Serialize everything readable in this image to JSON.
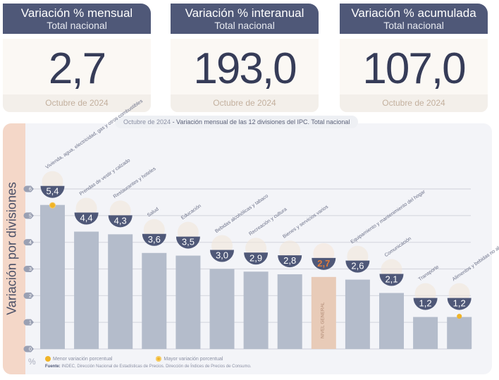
{
  "cards": [
    {
      "title": "Variación % mensual",
      "subtitle": "Total nacional",
      "value": "2,7",
      "period": "Octubre de 2024"
    },
    {
      "title": "Variación % interanual",
      "subtitle": "Total nacional",
      "value": "193,0",
      "period": "Octubre de 2024"
    },
    {
      "title": "Variación % acumulada",
      "subtitle": "Total nacional",
      "value": "107,0",
      "period": "Octubre de 2024"
    }
  ],
  "chart_data": {
    "type": "bar",
    "title_period": "Octubre de 2024",
    "title": " - Variación mensual de las 12 divisiones del IPC. Total nacional",
    "ylabel": "Variación por divisiones",
    "yunit": "%",
    "ylim": [
      0,
      6
    ],
    "yticks": [
      "0",
      "1",
      "2",
      "3",
      "4",
      "5",
      "6"
    ],
    "grid": true,
    "categories": [
      "Vivienda, agua, electricidad, gas y otros combustibles",
      "Prendas de vestir y calzado",
      "Restaurantes y hoteles",
      "Salud",
      "Educación",
      "Bebidas alcohólicas y tabaco",
      "Recreación y cultura",
      "Bienes y servicios varios",
      "Nivel general",
      "Equipamiento y mantenimiento del hogar",
      "Comunicación",
      "Transporte",
      "Alimentos y bebidas no alcohólicas"
    ],
    "values": [
      5.4,
      4.4,
      4.3,
      3.6,
      3.5,
      3.0,
      2.9,
      2.8,
      2.7,
      2.6,
      2.1,
      1.2,
      1.2
    ],
    "value_labels": [
      "5,4",
      "4,4",
      "4,3",
      "3,6",
      "3,5",
      "3,0",
      "2,9",
      "2,8",
      "2,7",
      "2,6",
      "2,1",
      "1,2",
      "1,2"
    ],
    "highlight_index": 8,
    "highlight_bar_text": "NIVEL GENERAL",
    "max_marker_index": 0,
    "min_marker_index": 12,
    "legend": [
      {
        "label": "Menor variación porcentual"
      },
      {
        "label": "Mayor variación porcentual"
      }
    ],
    "source_label": "Fuente:",
    "source_text": " INDEC, Dirección Nacional de Estadísticas de Precios. Dirección de Índices de Precios de Consumo."
  },
  "colors": {
    "header": "#4f5878",
    "bar": "#b4bccb",
    "highlight_bar": "#e8cbb8",
    "badge": "#4f5878",
    "highlight_text": "#e07a3a",
    "marker": "#f0b428",
    "axis_side": "#f4d7c8"
  }
}
